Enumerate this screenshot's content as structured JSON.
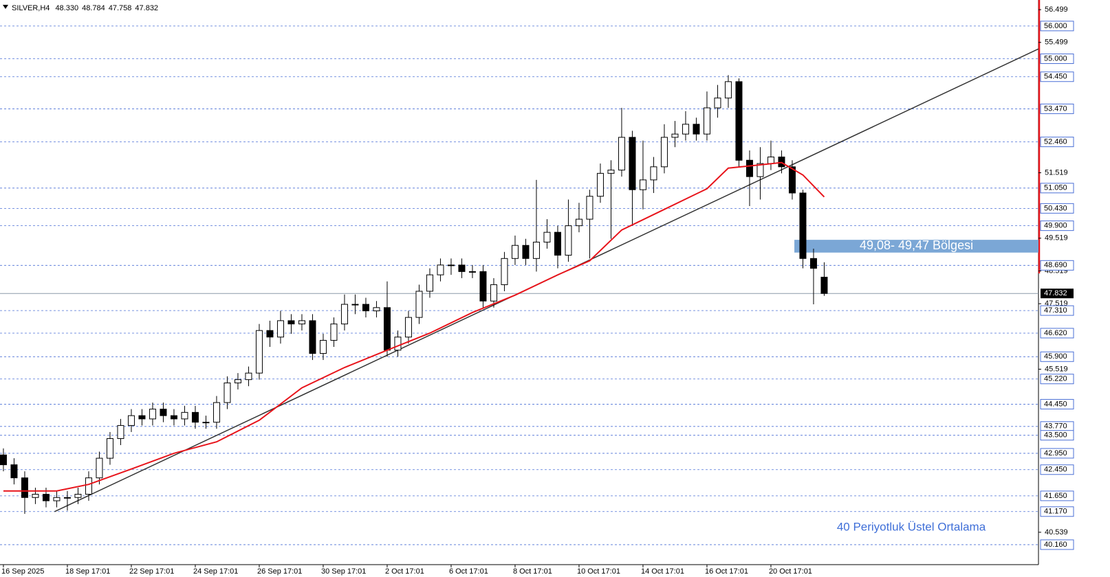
{
  "chart_data": {
    "type": "candlestick",
    "symbol": "SILVER,H4",
    "header_values": [
      {
        "value": 48.33,
        "label": "48.330"
      },
      48.784,
      47.758,
      47.832
    ],
    "categories": [
      "16 Sep 2025",
      null,
      null,
      null,
      null,
      null,
      "18 Sep 17:01",
      null,
      null,
      null,
      null,
      null,
      "22 Sep 17:01",
      null,
      null,
      null,
      null,
      null,
      "24 Sep 17:01",
      null,
      null,
      null,
      null,
      null,
      "26 Sep 17:01",
      null,
      null,
      null,
      null,
      null,
      "30 Sep 17:01",
      null,
      null,
      null,
      null,
      null,
      "2 Oct 17:01",
      null,
      null,
      null,
      null,
      null,
      "6 Oct 17:01",
      null,
      null,
      null,
      null,
      null,
      "8 Oct 17:01",
      null,
      null,
      null,
      null,
      null,
      "10 Oct 17:01",
      null,
      null,
      null,
      null,
      null,
      "14 Oct 17:01",
      null,
      null,
      null,
      null,
      null,
      "16 Oct 17:01",
      null,
      null,
      null,
      null,
      null,
      "20 Oct 17:01",
      null,
      null,
      null,
      null,
      null
    ],
    "open": [
      42.9,
      42.6,
      42.2,
      41.6,
      41.7,
      41.5,
      41.6,
      41.6,
      41.7,
      42.2,
      42.8,
      43.4,
      43.8,
      44.1,
      44.0,
      44.3,
      44.1,
      44.0,
      44.2,
      43.9,
      43.9,
      44.5,
      45.1,
      45.2,
      45.4,
      46.7,
      46.5,
      47.0,
      46.9,
      47.0,
      46.0,
      46.4,
      46.9,
      47.5,
      47.5,
      47.3,
      47.4,
      46.1,
      46.5,
      47.1,
      47.9,
      48.4,
      48.7,
      48.7,
      48.5,
      48.5,
      47.6,
      48.1,
      48.9,
      49.3,
      48.9,
      49.4,
      49.7,
      49.0,
      49.9,
      50.1,
      50.8,
      51.5,
      51.6,
      52.6,
      51.0,
      51.3,
      51.7,
      52.6,
      52.7,
      53.0,
      52.7,
      53.5,
      53.8,
      54.3,
      51.9,
      51.4,
      51.8,
      52.0,
      51.7,
      50.9,
      48.9,
      48.33
    ],
    "high": [
      43.1,
      42.8,
      42.4,
      41.9,
      41.9,
      41.8,
      41.8,
      41.9,
      42.4,
      43.0,
      43.6,
      44.0,
      44.3,
      44.3,
      44.5,
      44.5,
      44.3,
      44.4,
      44.4,
      44.1,
      44.7,
      45.3,
      45.4,
      45.6,
      46.9,
      47.0,
      47.3,
      47.2,
      47.2,
      47.2,
      46.6,
      47.1,
      47.8,
      47.8,
      47.7,
      47.6,
      48.2,
      46.7,
      47.3,
      48.1,
      48.6,
      48.9,
      48.9,
      48.9,
      48.7,
      48.7,
      48.3,
      49.1,
      49.6,
      49.5,
      51.3,
      50.1,
      49.9,
      50.7,
      50.6,
      51.0,
      51.8,
      51.9,
      53.5,
      52.8,
      52.5,
      52.0,
      53.0,
      53.1,
      53.4,
      53.2,
      54.0,
      54.2,
      54.5,
      54.4,
      52.2,
      52.3,
      52.5,
      52.2,
      51.9,
      51.0,
      49.2,
      48.784
    ],
    "low": [
      42.4,
      42.0,
      41.1,
      41.4,
      41.3,
      41.3,
      41.2,
      41.4,
      41.5,
      42.0,
      42.6,
      43.2,
      43.6,
      43.8,
      43.8,
      43.9,
      43.8,
      43.8,
      43.7,
      43.7,
      43.7,
      44.3,
      44.9,
      45.0,
      45.2,
      46.2,
      46.3,
      46.6,
      46.7,
      45.8,
      45.8,
      46.2,
      46.7,
      47.2,
      47.1,
      47.1,
      45.9,
      45.9,
      46.3,
      46.9,
      47.7,
      48.2,
      48.4,
      48.3,
      48.3,
      47.4,
      47.4,
      47.9,
      48.7,
      48.7,
      48.5,
      49.2,
      48.6,
      48.8,
      49.7,
      48.9,
      50.6,
      49.5,
      51.4,
      49.9,
      50.4,
      50.9,
      51.5,
      52.3,
      52.5,
      52.5,
      52.5,
      53.2,
      53.5,
      51.7,
      50.5,
      50.7,
      51.6,
      51.5,
      50.7,
      48.6,
      47.5,
      47.758
    ],
    "close": [
      42.6,
      42.2,
      41.6,
      41.7,
      41.5,
      41.6,
      41.6,
      41.7,
      42.2,
      42.8,
      43.4,
      43.8,
      44.1,
      44.0,
      44.3,
      44.1,
      44.0,
      44.2,
      43.9,
      43.9,
      44.5,
      45.1,
      45.2,
      45.4,
      46.7,
      46.5,
      47.0,
      46.9,
      47.0,
      46.0,
      46.4,
      46.9,
      47.5,
      47.5,
      47.3,
      47.4,
      46.1,
      46.5,
      47.1,
      47.9,
      48.4,
      48.7,
      48.7,
      48.5,
      48.5,
      47.6,
      48.1,
      48.9,
      49.3,
      48.9,
      49.4,
      49.7,
      49.0,
      49.9,
      50.1,
      50.8,
      51.5,
      51.6,
      52.6,
      51.0,
      51.3,
      51.7,
      52.6,
      52.7,
      53.0,
      52.7,
      53.5,
      53.8,
      54.3,
      51.9,
      51.4,
      51.8,
      52.0,
      51.7,
      50.9,
      48.9,
      48.6,
      47.832
    ],
    "up_color": "#ffffff",
    "down_color": "#000000",
    "ema": {
      "color": "#e8141b",
      "x": [
        0,
        5,
        8,
        12,
        16,
        20,
        24,
        28,
        32,
        36,
        40,
        44,
        48,
        52,
        55,
        58,
        62,
        66,
        68,
        71,
        73,
        75,
        77
      ],
      "values": [
        41.8,
        41.8,
        42.0,
        42.47,
        42.95,
        43.3,
        43.96,
        44.95,
        45.57,
        46.1,
        46.62,
        47.25,
        47.78,
        48.4,
        48.83,
        49.77,
        50.4,
        51.03,
        51.66,
        51.76,
        51.83,
        51.45,
        50.78
      ]
    },
    "trendline": {
      "color": "#333333",
      "x": [
        4.8,
        97.1
      ],
      "values": [
        41.17,
        55.3
      ]
    },
    "zone": {
      "label": "49,08- 49,47 Bölgesi",
      "low": 49.08,
      "high": 49.47,
      "start": 74.2,
      "color": "#7ba7d6"
    },
    "annotation": {
      "text": "40 Periyotluk Üstel Ortalama",
      "color": "#3f6fd8"
    },
    "current_price": {
      "value": 47.832,
      "label": "47.832"
    },
    "levels": [
      {
        "value": 56,
        "label": "56.000"
      },
      {
        "value": 55,
        "label": "55.000"
      },
      {
        "value": 54.45,
        "label": "54.450"
      },
      {
        "value": 53.47,
        "label": "53.470"
      },
      {
        "value": 52.46,
        "label": "52.460"
      },
      {
        "value": 51.05,
        "label": "51.050"
      },
      {
        "value": 50.43,
        "label": "50.430"
      },
      {
        "value": 49.9,
        "label": "49.900"
      },
      {
        "value": 48.69,
        "label": "48.690"
      },
      {
        "value": 47.31,
        "label": "47.310"
      },
      {
        "value": 46.62,
        "label": "46.620"
      },
      {
        "value": 45.9,
        "label": "45.900"
      },
      {
        "value": 45.22,
        "label": "45.220"
      },
      {
        "value": 44.45,
        "label": "44.450"
      },
      {
        "value": 43.77,
        "label": "43.770"
      },
      {
        "value": 43.5,
        "label": "43.500"
      },
      {
        "value": 42.95,
        "label": "42.950"
      },
      {
        "value": 42.45,
        "label": "42.450"
      },
      {
        "value": 41.65,
        "label": "41.650"
      },
      {
        "value": 41.17,
        "label": "41.170"
      },
      {
        "value": 40.16,
        "label": "40.160"
      }
    ],
    "level_color": "#4a6fd6",
    "yticks": [
      56.499,
      55.499,
      51.519,
      49.519,
      48.519,
      47.519,
      45.519,
      40.539
    ],
    "xlim": [
      -0.32,
      97.1
    ],
    "ylim": [
      39.55,
      56.71
    ]
  }
}
